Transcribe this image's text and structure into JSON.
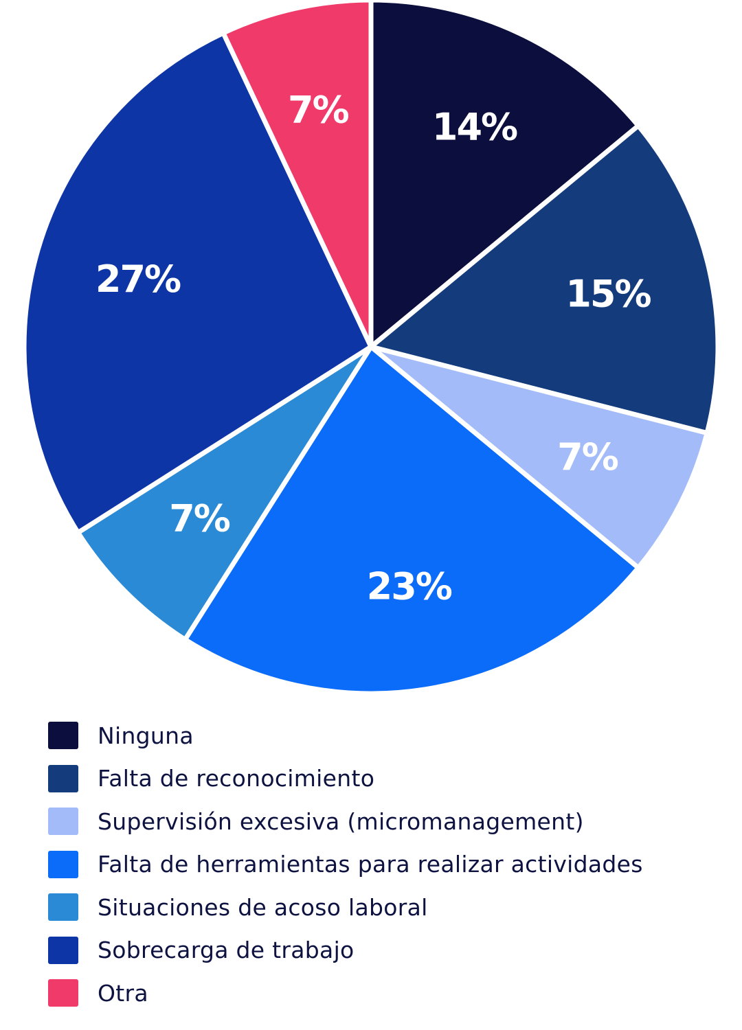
{
  "chart_data": {
    "type": "pie",
    "title": "",
    "slices": [
      {
        "label": "Ninguna",
        "value": 14,
        "display": "14%",
        "color": "#0c0f3e"
      },
      {
        "label": "Falta de reconocimiento",
        "value": 15,
        "display": "15%",
        "color": "#143c7c"
      },
      {
        "label": "Supervisión excesiva (micromanagement)",
        "value": 7,
        "display": "7%",
        "color": "#a3bcf9"
      },
      {
        "label": "Falta de herramientas para realizar actividades",
        "value": 23,
        "display": "23%",
        "color": "#0a6cf8"
      },
      {
        "label": "Situaciones de acoso laboral",
        "value": 7,
        "display": "7%",
        "color": "#2a8ad6"
      },
      {
        "label": "Sobrecarga de trabajo",
        "value": 27,
        "display": "27%",
        "color": "#0e35a6"
      },
      {
        "label": "Otra",
        "value": 7,
        "display": "7%",
        "color": "#f03a6a"
      }
    ],
    "start": "12 o'clock",
    "direction": "clockwise",
    "legend_position": "bottom"
  }
}
